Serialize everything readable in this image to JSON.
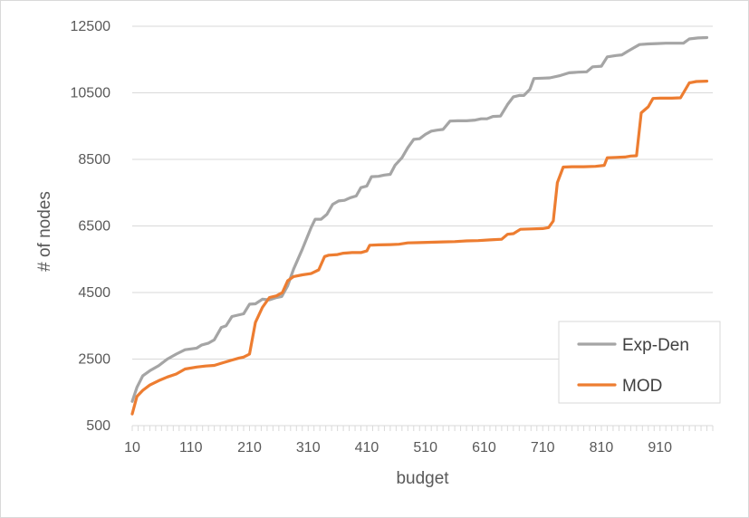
{
  "chart_data": {
    "type": "line",
    "title": "",
    "xlabel": "budget",
    "ylabel": "# of nodes",
    "x_tick_labels": [
      "10",
      "110",
      "210",
      "310",
      "410",
      "510",
      "610",
      "710",
      "810",
      "910"
    ],
    "y_tick_labels": [
      "500",
      "2500",
      "4500",
      "6500",
      "8500",
      "10500",
      "12500"
    ],
    "xlim": [
      10,
      1000
    ],
    "ylim": [
      500,
      12500
    ],
    "grid": "horizontal",
    "legend_position": "bottom-right",
    "series": [
      {
        "name": "Exp-Den",
        "color": "#a5a5a5",
        "points": [
          [
            10,
            1230
          ],
          [
            18,
            1650
          ],
          [
            28,
            2000
          ],
          [
            40,
            2150
          ],
          [
            55,
            2300
          ],
          [
            70,
            2500
          ],
          [
            85,
            2650
          ],
          [
            100,
            2780
          ],
          [
            120,
            2830
          ],
          [
            128,
            2920
          ],
          [
            140,
            2980
          ],
          [
            150,
            3080
          ],
          [
            162,
            3450
          ],
          [
            170,
            3500
          ],
          [
            180,
            3780
          ],
          [
            190,
            3820
          ],
          [
            200,
            3860
          ],
          [
            210,
            4150
          ],
          [
            220,
            4160
          ],
          [
            232,
            4300
          ],
          [
            244,
            4280
          ],
          [
            256,
            4350
          ],
          [
            265,
            4380
          ],
          [
            275,
            4700
          ],
          [
            285,
            5200
          ],
          [
            300,
            5800
          ],
          [
            315,
            6450
          ],
          [
            322,
            6700
          ],
          [
            332,
            6700
          ],
          [
            342,
            6850
          ],
          [
            352,
            7150
          ],
          [
            362,
            7250
          ],
          [
            372,
            7270
          ],
          [
            382,
            7350
          ],
          [
            392,
            7400
          ],
          [
            400,
            7650
          ],
          [
            410,
            7700
          ],
          [
            418,
            7980
          ],
          [
            430,
            7990
          ],
          [
            440,
            8030
          ],
          [
            450,
            8050
          ],
          [
            458,
            8320
          ],
          [
            470,
            8550
          ],
          [
            480,
            8850
          ],
          [
            490,
            9100
          ],
          [
            500,
            9120
          ],
          [
            510,
            9250
          ],
          [
            520,
            9350
          ],
          [
            530,
            9380
          ],
          [
            540,
            9400
          ],
          [
            552,
            9650
          ],
          [
            565,
            9660
          ],
          [
            580,
            9660
          ],
          [
            595,
            9680
          ],
          [
            605,
            9720
          ],
          [
            615,
            9720
          ],
          [
            625,
            9790
          ],
          [
            638,
            9800
          ],
          [
            650,
            10150
          ],
          [
            660,
            10380
          ],
          [
            670,
            10420
          ],
          [
            678,
            10420
          ],
          [
            688,
            10600
          ],
          [
            695,
            10930
          ],
          [
            710,
            10940
          ],
          [
            722,
            10950
          ],
          [
            740,
            11020
          ],
          [
            755,
            11100
          ],
          [
            770,
            11120
          ],
          [
            785,
            11130
          ],
          [
            795,
            11280
          ],
          [
            810,
            11300
          ],
          [
            820,
            11580
          ],
          [
            835,
            11620
          ],
          [
            845,
            11640
          ],
          [
            855,
            11750
          ],
          [
            865,
            11850
          ],
          [
            875,
            11950
          ],
          [
            890,
            11970
          ],
          [
            905,
            11980
          ],
          [
            920,
            11990
          ],
          [
            935,
            11990
          ],
          [
            950,
            11990
          ],
          [
            960,
            12120
          ],
          [
            975,
            12150
          ],
          [
            990,
            12160
          ]
        ]
      },
      {
        "name": "MOD",
        "color": "#ed7d31",
        "points": [
          [
            10,
            850
          ],
          [
            18,
            1380
          ],
          [
            28,
            1560
          ],
          [
            40,
            1720
          ],
          [
            55,
            1850
          ],
          [
            70,
            1960
          ],
          [
            85,
            2050
          ],
          [
            100,
            2200
          ],
          [
            120,
            2260
          ],
          [
            135,
            2290
          ],
          [
            150,
            2310
          ],
          [
            165,
            2390
          ],
          [
            180,
            2470
          ],
          [
            192,
            2530
          ],
          [
            200,
            2560
          ],
          [
            210,
            2650
          ],
          [
            220,
            3600
          ],
          [
            232,
            4050
          ],
          [
            244,
            4350
          ],
          [
            256,
            4400
          ],
          [
            266,
            4500
          ],
          [
            275,
            4850
          ],
          [
            285,
            4980
          ],
          [
            300,
            5030
          ],
          [
            315,
            5070
          ],
          [
            328,
            5180
          ],
          [
            338,
            5580
          ],
          [
            345,
            5620
          ],
          [
            360,
            5640
          ],
          [
            370,
            5680
          ],
          [
            385,
            5700
          ],
          [
            400,
            5700
          ],
          [
            410,
            5750
          ],
          [
            415,
            5920
          ],
          [
            430,
            5930
          ],
          [
            450,
            5940
          ],
          [
            465,
            5950
          ],
          [
            480,
            5990
          ],
          [
            500,
            6000
          ],
          [
            520,
            6010
          ],
          [
            540,
            6020
          ],
          [
            560,
            6030
          ],
          [
            580,
            6050
          ],
          [
            600,
            6060
          ],
          [
            620,
            6080
          ],
          [
            640,
            6100
          ],
          [
            650,
            6250
          ],
          [
            660,
            6270
          ],
          [
            672,
            6400
          ],
          [
            690,
            6410
          ],
          [
            710,
            6420
          ],
          [
            720,
            6450
          ],
          [
            728,
            6650
          ],
          [
            735,
            7800
          ],
          [
            745,
            8270
          ],
          [
            760,
            8280
          ],
          [
            780,
            8280
          ],
          [
            800,
            8290
          ],
          [
            815,
            8320
          ],
          [
            820,
            8550
          ],
          [
            835,
            8560
          ],
          [
            850,
            8570
          ],
          [
            860,
            8600
          ],
          [
            870,
            8610
          ],
          [
            878,
            9900
          ],
          [
            890,
            10080
          ],
          [
            898,
            10330
          ],
          [
            910,
            10340
          ],
          [
            930,
            10340
          ],
          [
            945,
            10350
          ],
          [
            960,
            10800
          ],
          [
            972,
            10840
          ],
          [
            990,
            10850
          ]
        ]
      }
    ]
  }
}
